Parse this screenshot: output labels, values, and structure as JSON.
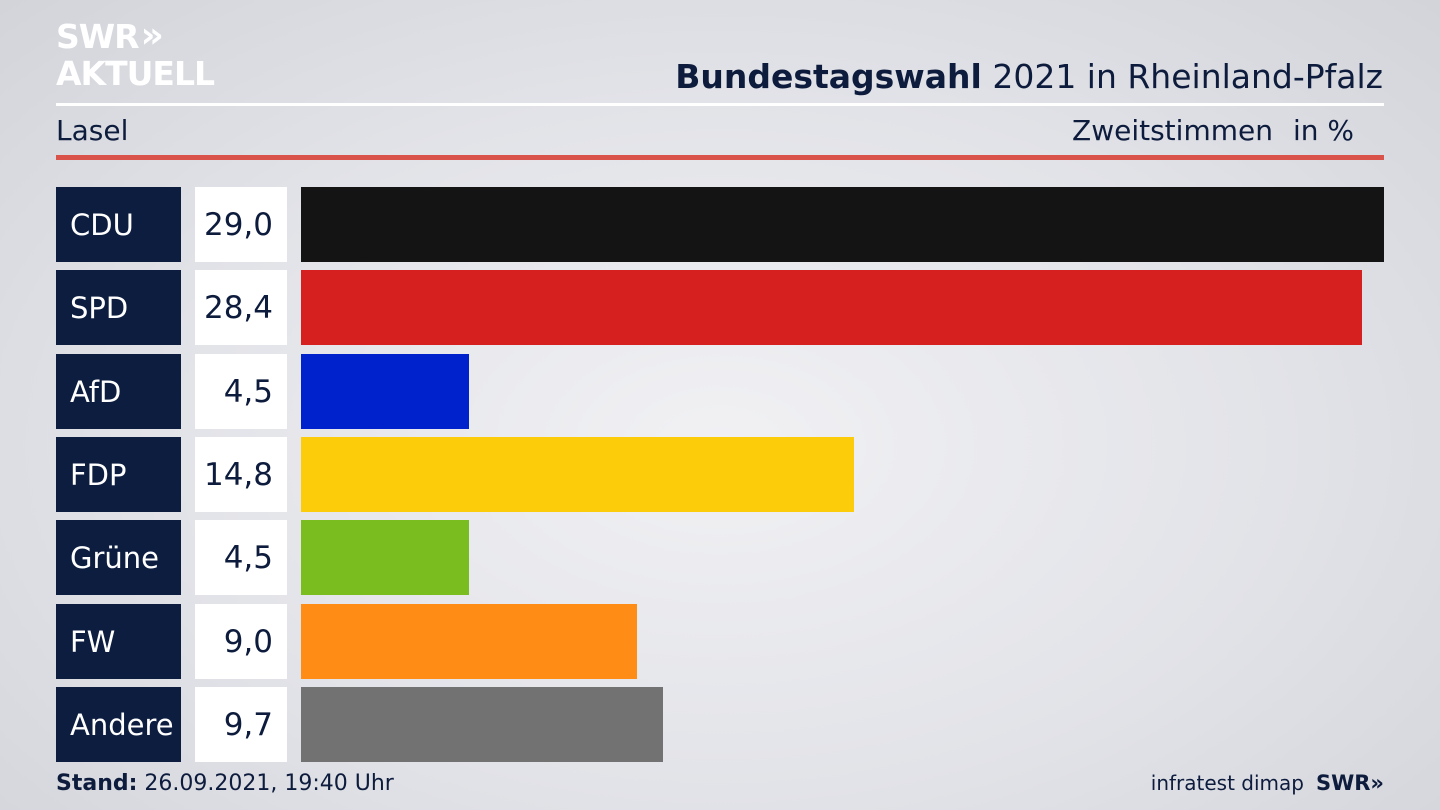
{
  "brand": {
    "line1": "SWR",
    "chevrons": "»",
    "line2": "AKTUELL"
  },
  "header": {
    "title_bold": "Bundestagswahl",
    "title_rest": " 2021 in Rheinland-Pfalz",
    "location": "Lasel",
    "measure": "Zweitstimmen",
    "unit": "in %"
  },
  "colors": {
    "accent_red": "#d9534a",
    "party_box": "#0c1d40",
    "text": "#0d1b3d"
  },
  "chart_data": {
    "type": "bar",
    "orientation": "horizontal",
    "categories": [
      "CDU",
      "SPD",
      "AfD",
      "FDP",
      "Grüne",
      "FW",
      "Andere"
    ],
    "values": [
      29.0,
      28.4,
      4.5,
      14.8,
      4.5,
      9.0,
      9.7
    ],
    "value_labels": [
      "29,0",
      "28,4",
      "4,5",
      "14,8",
      "4,5",
      "9,0",
      "9,7"
    ],
    "colors": [
      "#141414",
      "#d62020",
      "#0022cc",
      "#fccc0a",
      "#79be1e",
      "#ff8c14",
      "#727272"
    ],
    "xlim": [
      0,
      29.0
    ],
    "grid": false,
    "legend": "none"
  },
  "footer": {
    "stand_label": "Stand:",
    "stand_value": " 26.09.2021, 19:40 Uhr",
    "source": "infratest dimap",
    "brand": "SWR»"
  }
}
